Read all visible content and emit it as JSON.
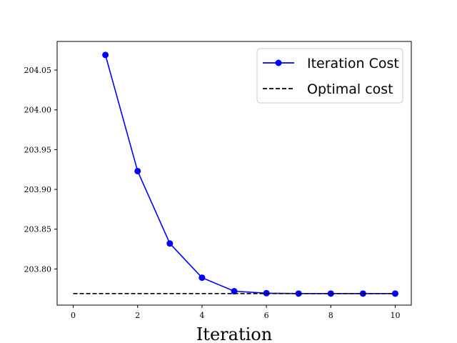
{
  "chart_data": {
    "type": "line",
    "xlabel": "Iteration",
    "ylabel": "",
    "title": "",
    "xlim": [
      -0.5,
      10.5
    ],
    "ylim": [
      203.7545,
      204.086
    ],
    "xticks": [
      0,
      2,
      4,
      6,
      8,
      10
    ],
    "xtick_labels": [
      "0",
      "2",
      "4",
      "6",
      "8",
      "10"
    ],
    "yticks": [
      203.8,
      203.85,
      203.9,
      203.95,
      204.0,
      204.05
    ],
    "ytick_labels": [
      "203.80",
      "203.85",
      "203.90",
      "203.95",
      "204.00",
      "204.05"
    ],
    "grid": false,
    "legend_position": "top-right",
    "series": [
      {
        "name": "Iteration Cost",
        "color": "#0000ff",
        "style": "solid-with-markers",
        "x": [
          1,
          2,
          3,
          4,
          5,
          6,
          7,
          8,
          9,
          10
        ],
        "y": [
          204.069,
          203.923,
          203.832,
          203.789,
          203.772,
          203.7695,
          203.769,
          203.769,
          203.769,
          203.769
        ]
      },
      {
        "name": "Optimal cost",
        "color": "#000000",
        "style": "dashed",
        "x": [
          0,
          10
        ],
        "y": [
          203.769,
          203.769
        ]
      }
    ]
  }
}
